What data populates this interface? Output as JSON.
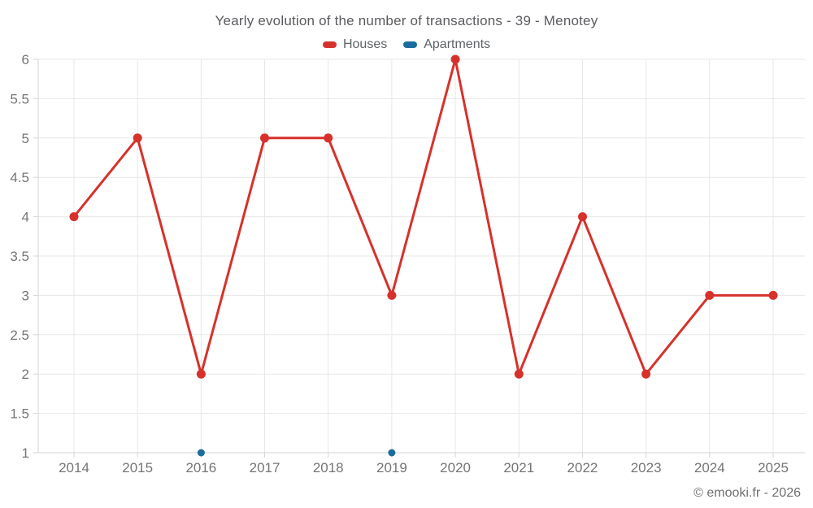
{
  "chart_data": {
    "type": "line",
    "title": "Yearly evolution of the number of transactions - 39 - Menotey",
    "categories": [
      "2014",
      "2015",
      "2016",
      "2017",
      "2018",
      "2019",
      "2020",
      "2021",
      "2022",
      "2023",
      "2024",
      "2025"
    ],
    "series": [
      {
        "name": "Houses",
        "color": "#d7312b",
        "values": [
          4,
          5,
          2,
          5,
          5,
          3,
          6,
          2,
          4,
          2,
          3,
          3
        ],
        "line_width": 3,
        "marker_radius": 5.5
      },
      {
        "name": "Apartments",
        "color": "#1a6d9e",
        "values": [
          null,
          null,
          1,
          null,
          null,
          1,
          null,
          null,
          null,
          null,
          null,
          null
        ],
        "line_width": 3,
        "marker_radius": 4.5
      }
    ],
    "xlabel": "",
    "ylabel": "",
    "ylim": [
      1,
      6
    ],
    "ytick_step": 0.5,
    "grid": true,
    "legend_position": "top"
  },
  "theme": {
    "grid_color": "#e7e7e7",
    "axis_color": "#d6d6d6",
    "tick_label_color": "#757575"
  },
  "footer": {
    "copyright": "© emooki.fr - 2026"
  }
}
